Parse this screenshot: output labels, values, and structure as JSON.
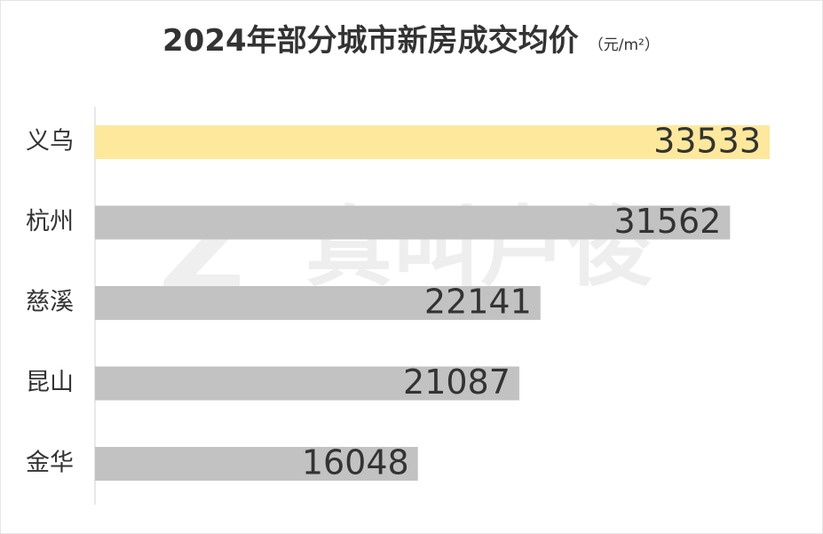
{
  "chart_data": {
    "type": "hbar",
    "title": "2024年部分城市新房成交均价",
    "subtitle": "（元/m²）",
    "watermark": "真叫卢俊",
    "categories": [
      "义乌",
      "杭州",
      "慈溪",
      "昆山",
      "金华"
    ],
    "values": [
      33533,
      31562,
      22141,
      21087,
      16048
    ],
    "colors": [
      "#fde89b",
      "#c2c2c2",
      "#c2c2c2",
      "#c2c2c2",
      "#c2c2c2"
    ]
  }
}
